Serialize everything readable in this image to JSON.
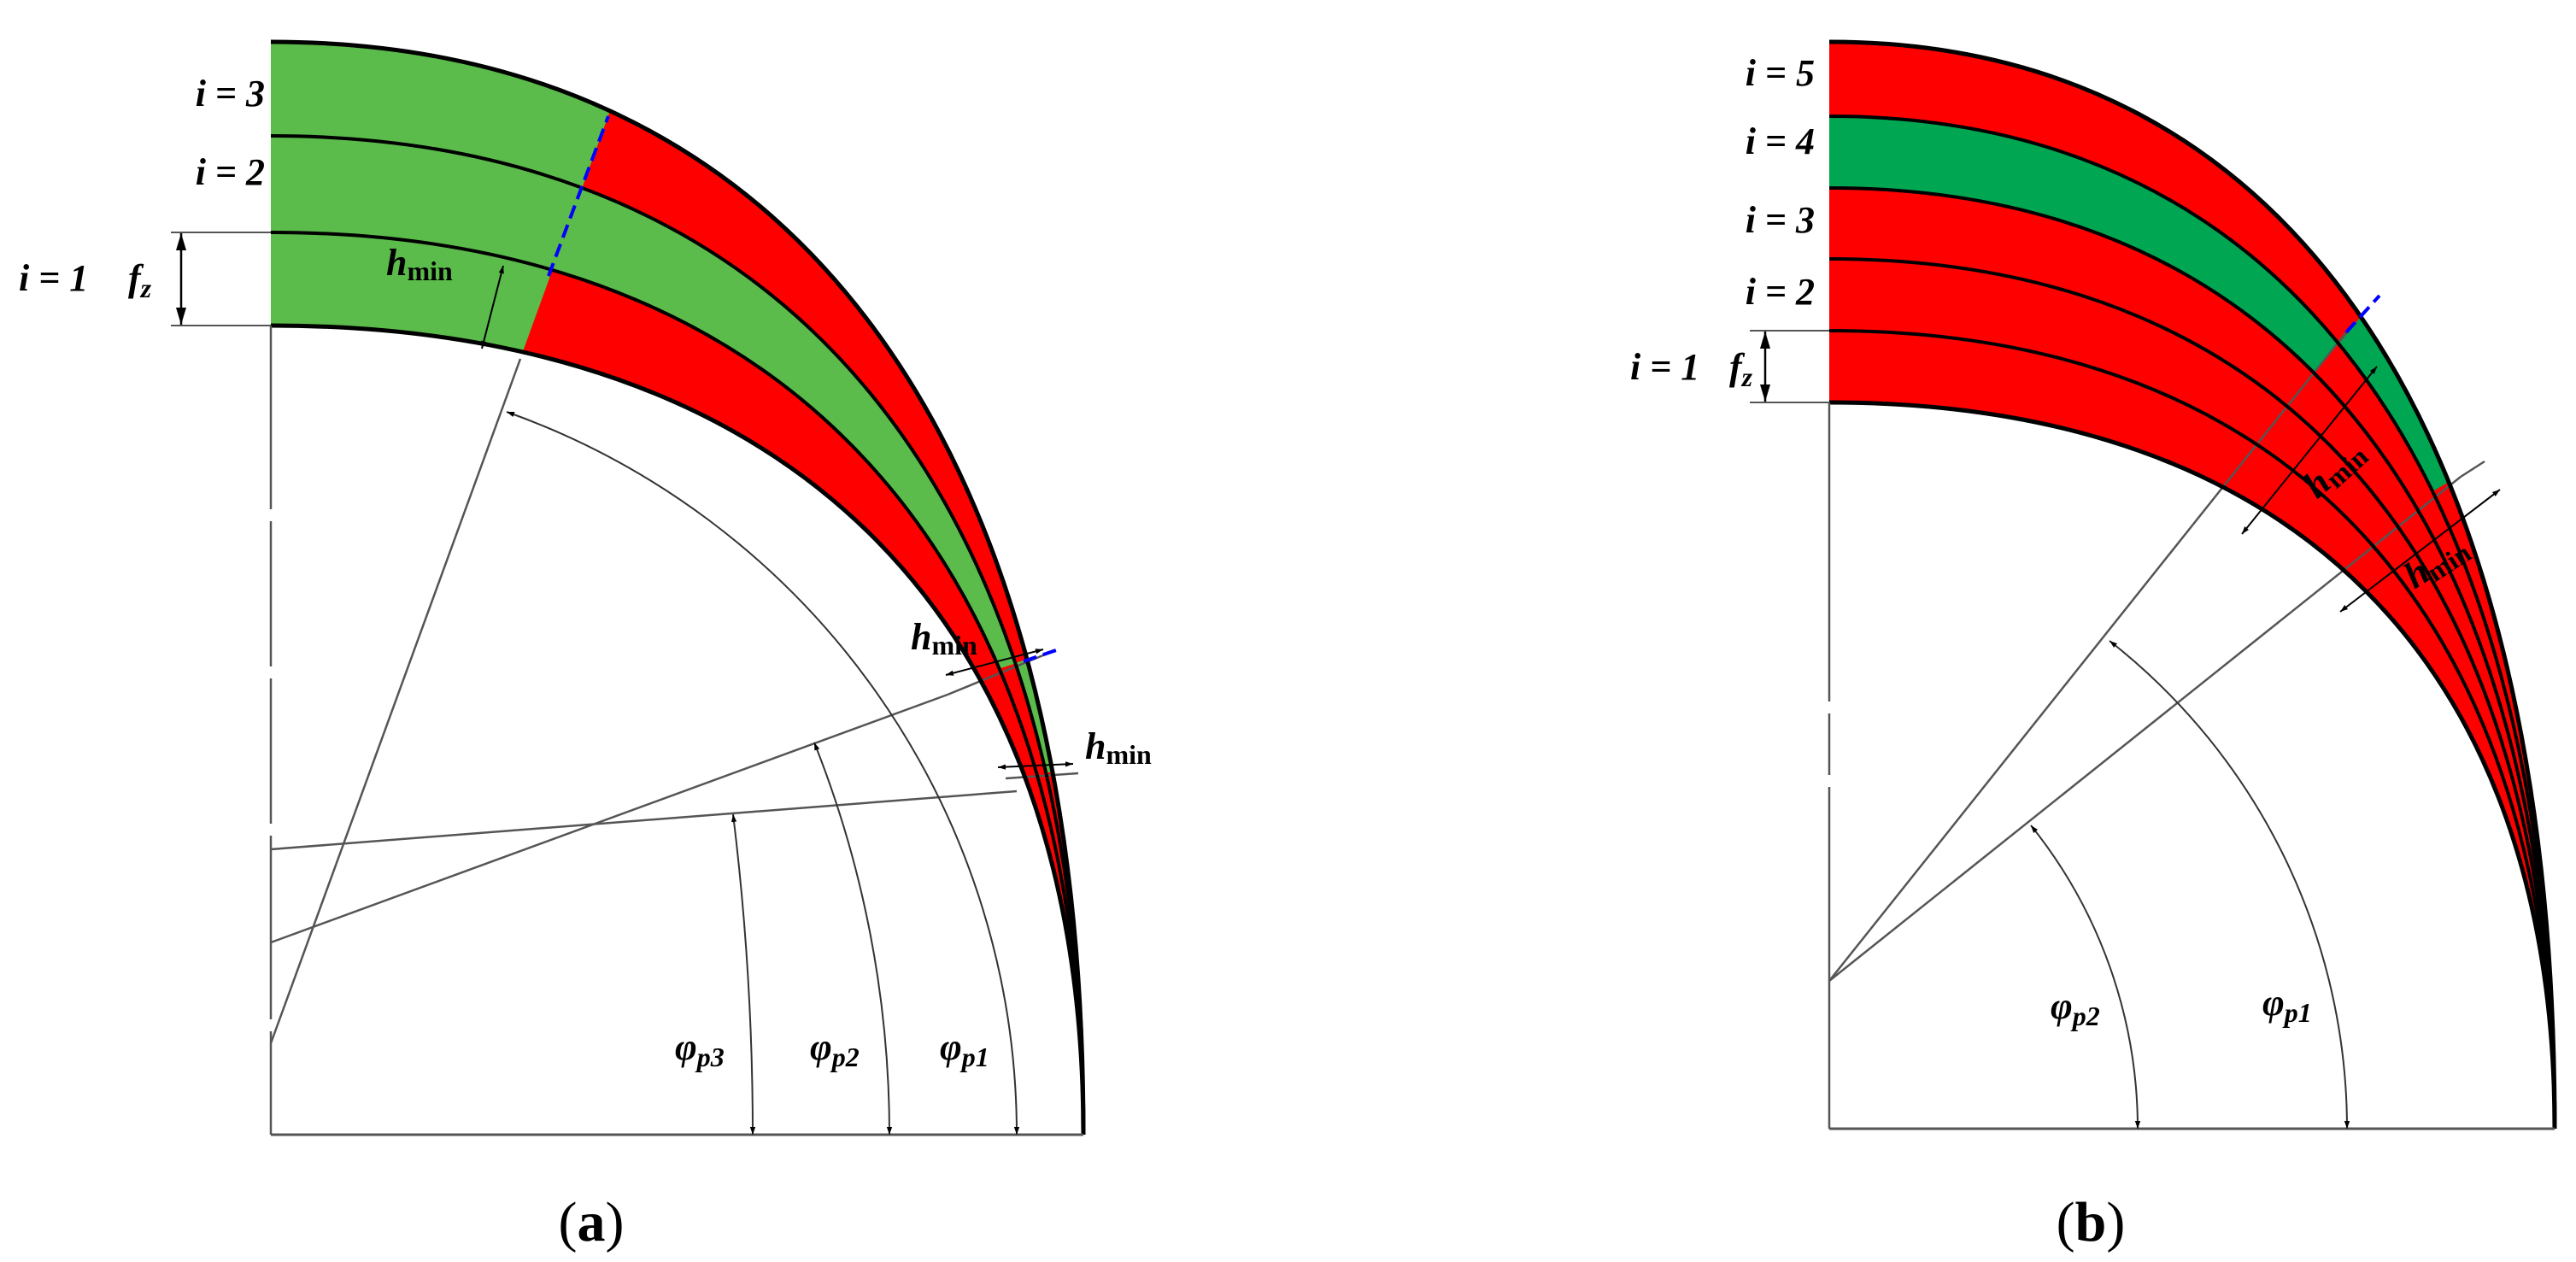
{
  "colors": {
    "red": "#ff0000",
    "green_a": "#5bbb4b",
    "green_b": "#00a651",
    "split_dash": "#0000ff",
    "outline": "#000000",
    "construction": "#555555"
  },
  "panel_a": {
    "caption_open": "(",
    "caption_letter": "a",
    "caption_close": ")",
    "levels": [
      "i = 3",
      "i = 2",
      "i = 1"
    ],
    "feed_symbol": "f",
    "feed_subscript": "z",
    "hmin_symbol": "h",
    "hmin_subscript": "min",
    "angles": [
      {
        "symbol": "φ",
        "subscript": "p3"
      },
      {
        "symbol": "φ",
        "subscript": "p2"
      },
      {
        "symbol": "φ",
        "subscript": "p1"
      }
    ],
    "band_colors_from_inner": [
      [
        "green",
        "red"
      ],
      [
        "green",
        "red"
      ],
      [
        "green",
        "red",
        "green",
        "red"
      ]
    ]
  },
  "panel_b": {
    "caption_open": "(",
    "caption_letter": "b",
    "caption_close": ")",
    "levels": [
      "i = 5",
      "i = 4",
      "i = 3",
      "i = 2",
      "i = 1"
    ],
    "feed_symbol": "f",
    "feed_subscript": "z",
    "hmin_symbol": "h",
    "hmin_subscript": "min",
    "angles": [
      {
        "symbol": "φ",
        "subscript": "p2"
      },
      {
        "symbol": "φ",
        "subscript": "p1"
      }
    ],
    "band_colors_from_inner": [
      [
        "red"
      ],
      [
        "red"
      ],
      [
        "red"
      ],
      [
        "green",
        "red"
      ],
      [
        "red",
        "green",
        "red"
      ]
    ]
  }
}
